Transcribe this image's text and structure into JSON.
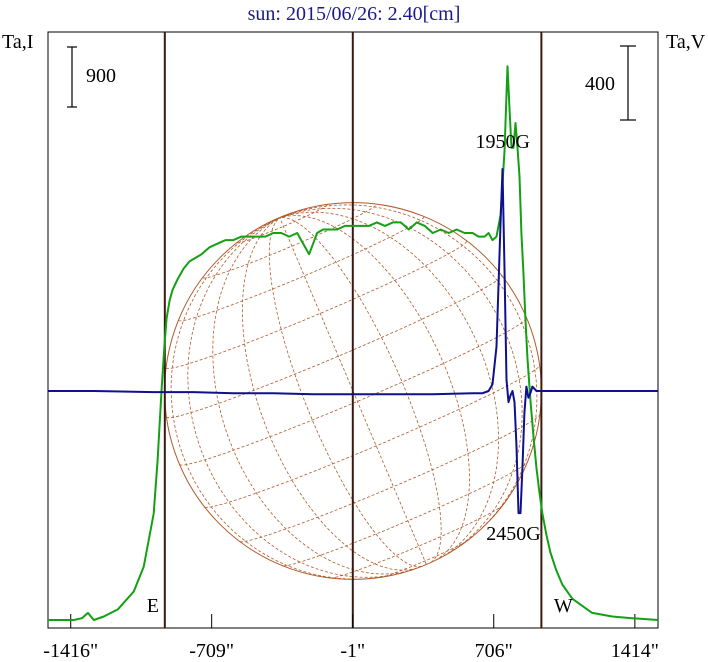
{
  "chart_data": {
    "type": "line",
    "title": "sun: 2015/06/26: 2.40[cm]",
    "left_axis_label": "Ta,I",
    "right_axis_label": "Ta,V",
    "left_scale_bar_label": "900",
    "right_scale_bar_label": "400",
    "xlim": [
      -1530,
      1530
    ],
    "x_ticks": [
      -1416,
      -709,
      -1,
      706,
      1414
    ],
    "x_tick_labels": [
      "-1416\"",
      "-709\"",
      "-1\"",
      "706\"",
      "1414\""
    ],
    "limb_markers": [
      {
        "label": "E",
        "x": -944
      },
      {
        "label": "W",
        "x": 945
      }
    ],
    "center_line_x": -1,
    "annotations": [
      {
        "label": "1950G",
        "x": 706,
        "y": 0.8
      },
      {
        "label": "2450G",
        "x": 840,
        "y": 0.22
      }
    ],
    "disk_grid": {
      "color": "#b05a2a"
    },
    "series": [
      {
        "name": "Ta,I",
        "axis": "left",
        "color": "#14a014",
        "x": [
          -1530,
          -1480,
          -1400,
          -1360,
          -1330,
          -1300,
          -1250,
          -1180,
          -1100,
          -1050,
          -1000,
          -980,
          -960,
          -945,
          -935,
          -920,
          -905,
          -880,
          -850,
          -820,
          -790,
          -760,
          -720,
          -680,
          -640,
          -600,
          -560,
          -520,
          -480,
          -440,
          -400,
          -360,
          -320,
          -280,
          -250,
          -220,
          -200,
          -180,
          -150,
          -120,
          -80,
          -40,
          0,
          40,
          80,
          120,
          160,
          200,
          240,
          280,
          320,
          360,
          400,
          440,
          480,
          520,
          560,
          600,
          630,
          660,
          680,
          700,
          720,
          740,
          760,
          775,
          785,
          795,
          805,
          815,
          825,
          835,
          845,
          855,
          865,
          875,
          890,
          905,
          920,
          935,
          950,
          970,
          990,
          1020,
          1050,
          1100,
          1150,
          1200,
          1300,
          1400,
          1530
        ],
        "y": [
          0.0,
          0.0,
          0.0,
          0.005,
          0.02,
          0.0,
          0.01,
          0.03,
          0.08,
          0.15,
          0.3,
          0.45,
          0.65,
          0.78,
          0.85,
          0.9,
          0.93,
          0.96,
          0.99,
          1.01,
          1.02,
          1.03,
          1.05,
          1.06,
          1.07,
          1.07,
          1.08,
          1.08,
          1.08,
          1.08,
          1.09,
          1.09,
          1.08,
          1.09,
          1.06,
          1.03,
          1.06,
          1.09,
          1.1,
          1.1,
          1.1,
          1.11,
          1.11,
          1.11,
          1.11,
          1.12,
          1.11,
          1.12,
          1.12,
          1.1,
          1.12,
          1.11,
          1.09,
          1.1,
          1.09,
          1.1,
          1.09,
          1.09,
          1.08,
          1.08,
          1.09,
          1.07,
          1.08,
          1.14,
          1.32,
          1.56,
          1.44,
          1.33,
          1.33,
          1.4,
          1.33,
          1.25,
          1.09,
          0.98,
          0.85,
          0.74,
          0.62,
          0.52,
          0.43,
          0.36,
          0.3,
          0.24,
          0.19,
          0.14,
          0.1,
          0.06,
          0.04,
          0.02,
          0.01,
          0.005,
          0.0
        ]
      },
      {
        "name": "Ta,V",
        "axis": "right",
        "color": "#10108c",
        "x": [
          -1530,
          -1300,
          -1000,
          -800,
          -600,
          -400,
          -200,
          0,
          200,
          400,
          600,
          650,
          680,
          700,
          720,
          740,
          750,
          760,
          770,
          780,
          790,
          800,
          810,
          820,
          830,
          840,
          850,
          860,
          870,
          880,
          890,
          900,
          920,
          950,
          1000,
          1200,
          1530
        ],
        "y": [
          0.0,
          0.0,
          -0.005,
          -0.005,
          -0.01,
          -0.01,
          -0.015,
          -0.015,
          -0.015,
          -0.015,
          -0.01,
          -0.01,
          0.0,
          0.03,
          0.2,
          0.75,
          1.0,
          0.55,
          0.05,
          -0.05,
          -0.02,
          0.0,
          -0.05,
          -0.25,
          -0.55,
          -0.55,
          -0.35,
          -0.1,
          0.02,
          -0.03,
          -0.01,
          0.02,
          0.0,
          0.0,
          0.0,
          0.0,
          0.0
        ]
      }
    ]
  }
}
